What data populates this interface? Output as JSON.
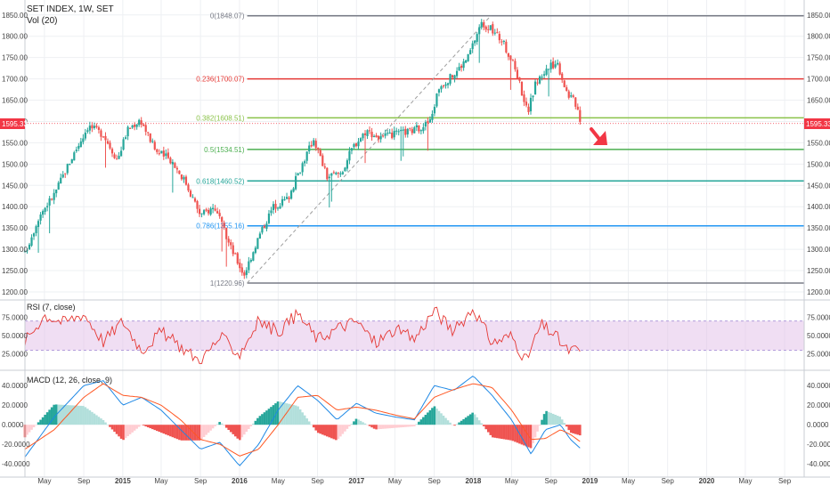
{
  "header": {
    "symbol": "SET INDEX, 1W, SET",
    "volume_label": "Vol (20)"
  },
  "last_price_label": "1595.33",
  "colors": {
    "up": "#26a69a",
    "down": "#ef5350",
    "rsi_line": "#e53935",
    "rsi_band": "#e1bee7",
    "macd_line": "#1e88e5",
    "signal_line": "#ff5722",
    "grid": "#eef0f3",
    "axis_text": "#444444",
    "price_tag": "#f23645",
    "arrow": "#f23645"
  },
  "chart_data": [
    {
      "type": "candlestick",
      "name": "price",
      "timeframe": "1W",
      "ylim": [
        1200,
        1860
      ],
      "yticks": [
        1200,
        1250,
        1300,
        1350,
        1400,
        1450,
        1500,
        1550,
        1600,
        1650,
        1700,
        1750,
        1800,
        1850
      ],
      "ytick_labels": [
        "1200.00",
        "1250.00",
        "1300.00",
        "1350.00",
        "1400.00",
        "1450.00",
        "1500.00",
        "1550.00",
        "1600.00",
        "1650.00",
        "1700.00",
        "1750.00",
        "1800.00",
        "1850.00"
      ],
      "x_time_range": [
        "2014-03",
        "2020-11"
      ],
      "last_price": 1595.33,
      "anchors": [
        [
          "2014-03-01",
          1290
        ],
        [
          "2014-04-15",
          1380
        ],
        [
          "2014-06-01",
          1430
        ],
        [
          "2014-07-15",
          1500
        ],
        [
          "2014-09-15",
          1590
        ],
        [
          "2014-11-01",
          1570
        ],
        [
          "2014-12-15",
          1510
        ],
        [
          "2015-01-15",
          1580
        ],
        [
          "2015-02-25",
          1605
        ],
        [
          "2015-04-15",
          1530
        ],
        [
          "2015-06-01",
          1510
        ],
        [
          "2015-07-15",
          1460
        ],
        [
          "2015-09-01",
          1380
        ],
        [
          "2015-10-15",
          1400
        ],
        [
          "2015-12-01",
          1310
        ],
        [
          "2016-01-15",
          1240
        ],
        [
          "2016-03-01",
          1330
        ],
        [
          "2016-04-15",
          1400
        ],
        [
          "2016-06-01",
          1420
        ],
        [
          "2016-07-15",
          1500
        ],
        [
          "2016-08-20",
          1560
        ],
        [
          "2016-10-01",
          1470
        ],
        [
          "2016-11-15",
          1480
        ],
        [
          "2016-12-20",
          1540
        ],
        [
          "2017-02-01",
          1580
        ],
        [
          "2017-03-15",
          1560
        ],
        [
          "2017-05-01",
          1570
        ],
        [
          "2017-07-01",
          1580
        ],
        [
          "2017-08-20",
          1600
        ],
        [
          "2017-09-15",
          1680
        ],
        [
          "2017-11-01",
          1710
        ],
        [
          "2017-12-15",
          1750
        ],
        [
          "2018-01-25",
          1830
        ],
        [
          "2018-02-20",
          1820
        ],
        [
          "2018-04-01",
          1790
        ],
        [
          "2018-05-15",
          1720
        ],
        [
          "2018-06-20",
          1620
        ],
        [
          "2018-07-15",
          1690
        ],
        [
          "2018-08-15",
          1720
        ],
        [
          "2018-09-20",
          1740
        ],
        [
          "2018-10-20",
          1670
        ],
        [
          "2018-11-20",
          1640
        ],
        [
          "2018-12-05",
          1595
        ]
      ],
      "fibonacci": {
        "levels": [
          {
            "ratio": "0",
            "value": 1848.07,
            "label": "0(1848.07)",
            "color": "#787b86"
          },
          {
            "ratio": "0.236",
            "value": 1700.07,
            "label": "0.236(1700.07)",
            "color": "#e53935"
          },
          {
            "ratio": "0.382",
            "value": 1608.51,
            "label": "0.382(1608.51)",
            "color": "#8bc34a"
          },
          {
            "ratio": "0.5",
            "value": 1534.51,
            "label": "0.5(1534.51)",
            "color": "#4caf50"
          },
          {
            "ratio": "0.618",
            "value": 1460.52,
            "label": "0.618(1460.52)",
            "color": "#26a69a"
          },
          {
            "ratio": "0.786",
            "value": 1355.16,
            "label": "0.786(1355.16)",
            "color": "#2196f3"
          },
          {
            "ratio": "1",
            "value": 1220.96,
            "label": "1(1220.96)",
            "color": "#787b86"
          }
        ],
        "trend_from": [
          "2016-01-25",
          1220.96
        ],
        "trend_to": [
          "2018-02-25",
          1848.07
        ]
      }
    },
    {
      "type": "line",
      "name": "rsi",
      "title": "RSI (7, close)",
      "ylim": [
        10,
        95
      ],
      "yticks": [
        25,
        50,
        75
      ],
      "ytick_labels": [
        "25.0000",
        "50.0000",
        "75.0000"
      ],
      "band": [
        30,
        70
      ],
      "anchors": [
        [
          "2014-03-01",
          42
        ],
        [
          "2014-05-01",
          78
        ],
        [
          "2014-07-01",
          68
        ],
        [
          "2014-09-01",
          80
        ],
        [
          "2014-11-01",
          42
        ],
        [
          "2015-01-01",
          70
        ],
        [
          "2015-03-01",
          30
        ],
        [
          "2015-05-01",
          55
        ],
        [
          "2015-07-01",
          35
        ],
        [
          "2015-09-01",
          15
        ],
        [
          "2015-11-01",
          48
        ],
        [
          "2016-01-01",
          25
        ],
        [
          "2016-03-01",
          70
        ],
        [
          "2016-05-01",
          55
        ],
        [
          "2016-07-01",
          80
        ],
        [
          "2016-09-01",
          45
        ],
        [
          "2016-11-01",
          60
        ],
        [
          "2017-01-01",
          70
        ],
        [
          "2017-03-01",
          40
        ],
        [
          "2017-05-01",
          58
        ],
        [
          "2017-07-01",
          45
        ],
        [
          "2017-09-01",
          85
        ],
        [
          "2017-11-01",
          55
        ],
        [
          "2018-01-01",
          88
        ],
        [
          "2018-03-01",
          40
        ],
        [
          "2018-05-01",
          50
        ],
        [
          "2018-06-15",
          15
        ],
        [
          "2018-08-01",
          65
        ],
        [
          "2018-09-15",
          50
        ],
        [
          "2018-10-20",
          30
        ],
        [
          "2018-12-05",
          30
        ]
      ]
    },
    {
      "type": "macd",
      "name": "macd",
      "title": "MACD (12, 26, close, 9)",
      "ylim": [
        -48,
        52
      ],
      "yticks": [
        -40,
        -20,
        0,
        20,
        40
      ],
      "ytick_labels": [
        "-40.0000",
        "-20.0000",
        "0.0000",
        "20.0000",
        "40.0000"
      ],
      "macd_anchors": [
        [
          "2014-03-01",
          -33
        ],
        [
          "2014-06-01",
          8
        ],
        [
          "2014-09-01",
          40
        ],
        [
          "2014-11-01",
          45
        ],
        [
          "2015-01-01",
          20
        ],
        [
          "2015-03-01",
          28
        ],
        [
          "2015-05-01",
          15
        ],
        [
          "2015-07-01",
          -5
        ],
        [
          "2015-09-01",
          -25
        ],
        [
          "2015-11-01",
          -18
        ],
        [
          "2016-01-01",
          -42
        ],
        [
          "2016-03-01",
          -20
        ],
        [
          "2016-05-01",
          15
        ],
        [
          "2016-07-01",
          40
        ],
        [
          "2016-09-01",
          25
        ],
        [
          "2016-11-01",
          5
        ],
        [
          "2017-01-01",
          22
        ],
        [
          "2017-03-01",
          12
        ],
        [
          "2017-05-01",
          8
        ],
        [
          "2017-07-01",
          5
        ],
        [
          "2017-09-01",
          40
        ],
        [
          "2017-11-01",
          35
        ],
        [
          "2018-01-01",
          50
        ],
        [
          "2018-03-01",
          30
        ],
        [
          "2018-05-01",
          5
        ],
        [
          "2018-07-01",
          -30
        ],
        [
          "2018-08-15",
          -5
        ],
        [
          "2018-10-01",
          0
        ],
        [
          "2018-11-01",
          -15
        ],
        [
          "2018-12-05",
          -25
        ]
      ],
      "signal_anchors": [
        [
          "2014-03-01",
          -25
        ],
        [
          "2014-06-01",
          -5
        ],
        [
          "2014-09-01",
          28
        ],
        [
          "2014-11-01",
          42
        ],
        [
          "2015-01-01",
          30
        ],
        [
          "2015-03-01",
          28
        ],
        [
          "2015-05-01",
          20
        ],
        [
          "2015-07-01",
          5
        ],
        [
          "2015-09-01",
          -15
        ],
        [
          "2015-11-01",
          -20
        ],
        [
          "2016-01-01",
          -32
        ],
        [
          "2016-03-01",
          -25
        ],
        [
          "2016-05-01",
          0
        ],
        [
          "2016-07-01",
          28
        ],
        [
          "2016-09-01",
          30
        ],
        [
          "2016-11-01",
          15
        ],
        [
          "2017-01-01",
          18
        ],
        [
          "2017-03-01",
          15
        ],
        [
          "2017-05-01",
          10
        ],
        [
          "2017-07-01",
          6
        ],
        [
          "2017-09-01",
          28
        ],
        [
          "2017-11-01",
          36
        ],
        [
          "2018-01-01",
          42
        ],
        [
          "2018-03-01",
          38
        ],
        [
          "2018-05-01",
          15
        ],
        [
          "2018-07-01",
          -15
        ],
        [
          "2018-08-15",
          -14
        ],
        [
          "2018-10-01",
          -5
        ],
        [
          "2018-11-01",
          -10
        ],
        [
          "2018-12-05",
          -18
        ]
      ]
    }
  ],
  "x_axis": {
    "ticks": [
      {
        "date": "2014-05-01",
        "label": "May"
      },
      {
        "date": "2014-09-01",
        "label": "Sep"
      },
      {
        "date": "2015-01-01",
        "label": "2015"
      },
      {
        "date": "2015-05-01",
        "label": "May"
      },
      {
        "date": "2015-09-01",
        "label": "Sep"
      },
      {
        "date": "2016-01-01",
        "label": "2016"
      },
      {
        "date": "2016-05-01",
        "label": "May"
      },
      {
        "date": "2016-09-01",
        "label": "Sep"
      },
      {
        "date": "2017-01-01",
        "label": "2017"
      },
      {
        "date": "2017-05-01",
        "label": "May"
      },
      {
        "date": "2017-09-01",
        "label": "Sep"
      },
      {
        "date": "2018-01-01",
        "label": "2018"
      },
      {
        "date": "2018-05-01",
        "label": "May"
      },
      {
        "date": "2018-09-01",
        "label": "Sep"
      },
      {
        "date": "2019-01-01",
        "label": "2019"
      },
      {
        "date": "2019-05-01",
        "label": "May"
      },
      {
        "date": "2019-09-01",
        "label": "Sep"
      },
      {
        "date": "2020-01-01",
        "label": "2020"
      },
      {
        "date": "2020-05-01",
        "label": "May"
      },
      {
        "date": "2020-09-01",
        "label": "Sep"
      }
    ]
  }
}
